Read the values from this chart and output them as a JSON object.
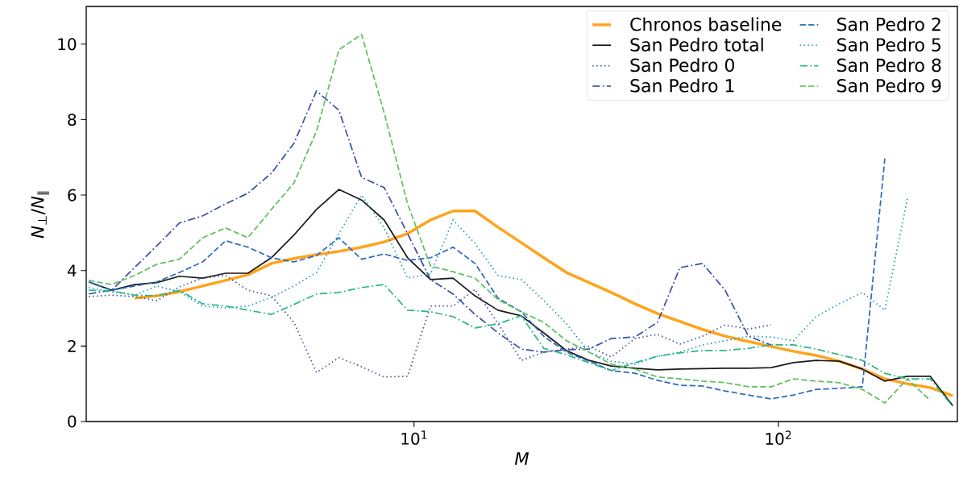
{
  "chart_data": {
    "type": "line",
    "xlabel": "M",
    "ylabel": "*N*$_{⊥}$/*N*$_{∥}$",
    "log": "x",
    "legend": "top right",
    "marker": "none",
    "xlim": [
      1.26,
      310
    ],
    "ylim": [
      0,
      11
    ],
    "xticks": [
      {
        "value": 10,
        "label": "10$^{1}$"
      },
      {
        "value": 100,
        "label": "10$^{2}$"
      }
    ],
    "yticks": [
      0,
      2,
      4,
      6,
      8,
      10
    ],
    "x": [
      1.28,
      1.48,
      1.71,
      1.97,
      2.27,
      2.63,
      3.04,
      3.5,
      4.06,
      4.68,
      5.4,
      6.22,
      7.18,
      8.28,
      9.6,
      11.1,
      12.8,
      14.7,
      17.0,
      19.7,
      22.7,
      26.2,
      30.2,
      34.8,
      40.4,
      46.6,
      53.7,
      61.9,
      71.4,
      82.8,
      95.5,
      110,
      127,
      147,
      170,
      196,
      226,
      261,
      301
    ],
    "series": [
      {
        "name": "Chronos baseline",
        "color": "#ffa31a",
        "line_style": "solid",
        "values": [
          null,
          null,
          3.27,
          3.33,
          3.44,
          3.59,
          3.74,
          3.89,
          4.19,
          4.32,
          4.42,
          4.51,
          4.62,
          4.76,
          4.98,
          5.34,
          5.58,
          5.58,
          5.15,
          4.74,
          4.34,
          3.95,
          3.68,
          3.42,
          3.12,
          2.86,
          2.65,
          2.44,
          2.26,
          2.12,
          1.99,
          1.86,
          1.75,
          1.6,
          1.39,
          1.13,
          1.0,
          0.9,
          0.68
        ]
      },
      {
        "name": "San Pedro total",
        "color": "#1a1a1a",
        "line_style": "solid",
        "values": [
          3.7,
          3.48,
          3.63,
          3.68,
          3.85,
          3.8,
          3.93,
          3.93,
          4.34,
          4.94,
          5.62,
          6.15,
          5.87,
          5.34,
          4.34,
          3.76,
          3.8,
          3.33,
          2.95,
          2.8,
          2.35,
          1.88,
          1.62,
          1.47,
          1.41,
          1.37,
          1.39,
          1.4,
          1.41,
          1.41,
          1.43,
          1.56,
          1.62,
          1.6,
          1.39,
          1.07,
          1.2,
          1.2,
          0.42
        ]
      },
      {
        "name": "San Pedro 0",
        "color": "#3f4fa3",
        "line_style": "dotted",
        "values": [
          3.31,
          3.35,
          3.31,
          3.2,
          3.57,
          3.8,
          3.87,
          3.48,
          3.33,
          2.63,
          1.3,
          1.69,
          1.45,
          1.18,
          1.2,
          3.06,
          3.06,
          3.5,
          2.6,
          1.62,
          1.84,
          1.92,
          1.99,
          1.71,
          2.2,
          2.31,
          2.05,
          2.26,
          2.56,
          2.45,
          2.56,
          null,
          null,
          null,
          null,
          null,
          null,
          null,
          null
        ]
      },
      {
        "name": "San Pedro 1",
        "color": "#3a53a4",
        "line_style": "dashdot",
        "values": [
          3.38,
          3.48,
          4.08,
          4.66,
          5.26,
          5.45,
          5.77,
          6.05,
          6.58,
          7.37,
          8.76,
          8.25,
          6.47,
          6.2,
          4.98,
          3.76,
          3.38,
          2.84,
          2.35,
          1.92,
          1.84,
          1.9,
          1.92,
          2.2,
          2.24,
          2.63,
          4.08,
          4.19,
          3.48,
          2.26,
          2.03,
          null,
          null,
          null,
          null,
          null,
          null,
          null,
          null
        ]
      },
      {
        "name": "San Pedro 2",
        "color": "#2e6bbf",
        "line_style": "dashed",
        "values": [
          3.7,
          3.48,
          3.59,
          3.7,
          3.95,
          4.23,
          4.79,
          4.62,
          4.34,
          4.23,
          4.4,
          4.87,
          4.3,
          4.44,
          4.27,
          4.34,
          4.62,
          4.19,
          3.27,
          2.91,
          2.26,
          1.84,
          1.6,
          1.35,
          1.28,
          1.09,
          0.96,
          0.94,
          0.81,
          0.7,
          0.6,
          0.7,
          0.85,
          0.88,
          0.92,
          6.97,
          null,
          null,
          null
        ]
      },
      {
        "name": "San Pedro 5",
        "color": "#1b9bb8",
        "line_style": "dotted",
        "values": [
          3.55,
          3.44,
          3.35,
          3.59,
          3.44,
          3.06,
          3.01,
          3.06,
          3.29,
          3.59,
          3.95,
          4.98,
          6.0,
          5.13,
          3.8,
          3.91,
          5.34,
          4.72,
          3.87,
          3.76,
          3.21,
          2.59,
          1.84,
          1.6,
          1.52,
          1.73,
          1.84,
          2.03,
          2.14,
          2.26,
          2.24,
          2.14,
          2.78,
          3.12,
          3.42,
          2.95,
          5.9,
          null,
          null
        ]
      },
      {
        "name": "San Pedro 8",
        "color": "#2cb68a",
        "line_style": "dashdot",
        "values": [
          3.48,
          3.46,
          3.35,
          3.33,
          3.48,
          3.12,
          3.06,
          2.95,
          2.84,
          3.1,
          3.38,
          3.42,
          3.55,
          3.63,
          2.95,
          2.91,
          2.78,
          2.48,
          2.59,
          2.8,
          1.94,
          1.77,
          1.56,
          1.35,
          1.56,
          1.73,
          1.82,
          1.88,
          1.88,
          1.94,
          2.03,
          2.03,
          1.92,
          1.77,
          1.62,
          1.28,
          1.13,
          1.13,
          0.4
        ]
      },
      {
        "name": "San Pedro 9",
        "color": "#5fc15f",
        "line_style": "dashed",
        "values": [
          3.74,
          3.63,
          3.87,
          4.17,
          4.3,
          4.87,
          5.13,
          4.87,
          5.62,
          6.32,
          7.69,
          9.85,
          10.26,
          8.18,
          5.77,
          4.12,
          3.97,
          3.8,
          3.23,
          2.91,
          2.63,
          2.14,
          1.84,
          1.52,
          1.39,
          1.18,
          1.13,
          1.07,
          1.03,
          0.92,
          0.92,
          1.13,
          1.07,
          1.03,
          0.85,
          0.49,
          1.13,
          0.56,
          null
        ]
      }
    ]
  }
}
